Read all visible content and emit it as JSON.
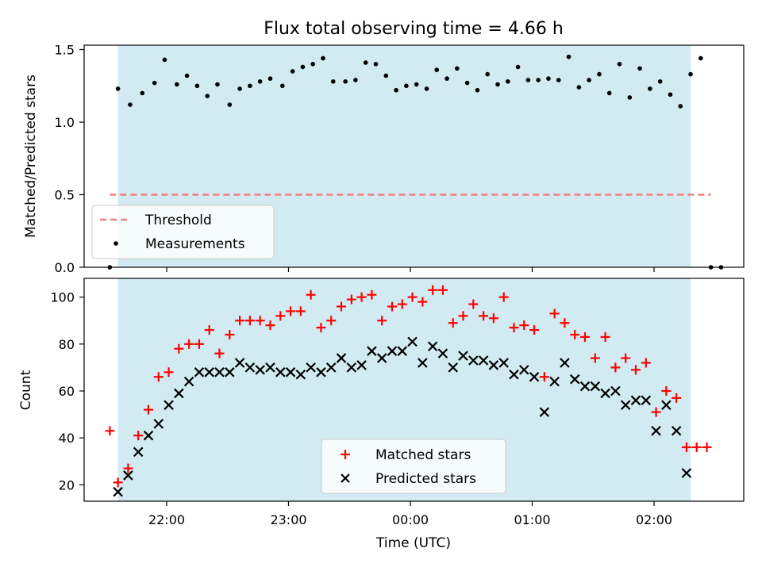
{
  "title": "Flux total observing time = 4.66 h",
  "observing_window": {
    "start": "21:36",
    "end": "02:18",
    "color": "#add8e6"
  },
  "chart_data": [
    {
      "type": "scatter",
      "ylabel": "Matched/Predicted stars",
      "ylim": [
        0,
        1.53
      ],
      "yticks": [
        0.0,
        0.5,
        1.0,
        1.5
      ],
      "ytick_labels": [
        "0.0",
        "0.5",
        "1.0",
        "1.5"
      ],
      "legend": {
        "placement": "lower-left",
        "entries": [
          "Threshold",
          "Measurements"
        ]
      },
      "threshold": {
        "name": "Threshold",
        "value": 0.5,
        "x_start": "21:32",
        "x_end": "02:28",
        "color": "#f08080",
        "style": "dashed"
      },
      "series": [
        {
          "name": "Measurements",
          "marker": "dot",
          "color": "#000000",
          "points": [
            [
              "21:32",
              0.0
            ],
            [
              "21:36",
              1.23
            ],
            [
              "21:42",
              1.12
            ],
            [
              "21:48",
              1.2
            ],
            [
              "21:54",
              1.27
            ],
            [
              "21:59",
              1.43
            ],
            [
              "22:05",
              1.26
            ],
            [
              "22:10",
              1.32
            ],
            [
              "22:15",
              1.25
            ],
            [
              "22:20",
              1.18
            ],
            [
              "22:25",
              1.26
            ],
            [
              "22:31",
              1.12
            ],
            [
              "22:36",
              1.23
            ],
            [
              "22:41",
              1.25
            ],
            [
              "22:46",
              1.28
            ],
            [
              "22:51",
              1.3
            ],
            [
              "22:57",
              1.25
            ],
            [
              "23:02",
              1.35
            ],
            [
              "23:07",
              1.38
            ],
            [
              "23:12",
              1.4
            ],
            [
              "23:17",
              1.44
            ],
            [
              "23:22",
              1.28
            ],
            [
              "23:28",
              1.28
            ],
            [
              "23:33",
              1.29
            ],
            [
              "23:38",
              1.41
            ],
            [
              "23:43",
              1.4
            ],
            [
              "23:48",
              1.32
            ],
            [
              "23:53",
              1.22
            ],
            [
              "23:58",
              1.25
            ],
            [
              "00:03",
              1.26
            ],
            [
              "00:08",
              1.23
            ],
            [
              "00:13",
              1.36
            ],
            [
              "00:18",
              1.3
            ],
            [
              "00:23",
              1.37
            ],
            [
              "00:28",
              1.27
            ],
            [
              "00:33",
              1.22
            ],
            [
              "00:38",
              1.33
            ],
            [
              "00:43",
              1.26
            ],
            [
              "00:48",
              1.28
            ],
            [
              "00:53",
              1.38
            ],
            [
              "00:58",
              1.29
            ],
            [
              "01:03",
              1.29
            ],
            [
              "01:08",
              1.3
            ],
            [
              "01:13",
              1.29
            ],
            [
              "01:18",
              1.45
            ],
            [
              "01:23",
              1.24
            ],
            [
              "01:28",
              1.29
            ],
            [
              "01:33",
              1.33
            ],
            [
              "01:38",
              1.2
            ],
            [
              "01:43",
              1.4
            ],
            [
              "01:48",
              1.17
            ],
            [
              "01:53",
              1.37
            ],
            [
              "01:58",
              1.23
            ],
            [
              "02:03",
              1.28
            ],
            [
              "02:08",
              1.19
            ],
            [
              "02:13",
              1.11
            ],
            [
              "02:18",
              1.33
            ],
            [
              "02:23",
              1.44
            ],
            [
              "02:28",
              0.0
            ],
            [
              "02:33",
              0.0
            ]
          ]
        }
      ]
    },
    {
      "type": "scatter",
      "xlabel": "Time (UTC)",
      "ylabel": "Count",
      "ylim": [
        13,
        108
      ],
      "yticks": [
        20,
        40,
        60,
        80,
        100
      ],
      "ytick_labels": [
        "20",
        "40",
        "60",
        "80",
        "100"
      ],
      "x_ticks": [
        "22:00",
        "23:00",
        "00:00",
        "01:00",
        "02:00"
      ],
      "legend": {
        "placement": "lower-center",
        "entries": [
          "Matched stars",
          "Predicted stars"
        ]
      },
      "series": [
        {
          "name": "Matched stars",
          "marker": "plus",
          "color": "#ff0000",
          "points": [
            [
              "21:32",
              43
            ],
            [
              "21:36",
              21
            ],
            [
              "21:41",
              27
            ],
            [
              "21:46",
              41
            ],
            [
              "21:51",
              52
            ],
            [
              "21:56",
              66
            ],
            [
              "22:01",
              68
            ],
            [
              "22:06",
              78
            ],
            [
              "22:11",
              80
            ],
            [
              "22:16",
              80
            ],
            [
              "22:21",
              86
            ],
            [
              "22:26",
              76
            ],
            [
              "22:31",
              84
            ],
            [
              "22:36",
              90
            ],
            [
              "22:41",
              90
            ],
            [
              "22:46",
              90
            ],
            [
              "22:51",
              88
            ],
            [
              "22:56",
              92
            ],
            [
              "23:01",
              94
            ],
            [
              "23:06",
              94
            ],
            [
              "23:11",
              101
            ],
            [
              "23:16",
              87
            ],
            [
              "23:21",
              90
            ],
            [
              "23:26",
              96
            ],
            [
              "23:31",
              99
            ],
            [
              "23:36",
              100
            ],
            [
              "23:41",
              101
            ],
            [
              "23:46",
              90
            ],
            [
              "23:51",
              96
            ],
            [
              "23:56",
              97
            ],
            [
              "00:01",
              100
            ],
            [
              "00:06",
              98
            ],
            [
              "00:11",
              103
            ],
            [
              "00:16",
              103
            ],
            [
              "00:21",
              89
            ],
            [
              "00:26",
              92
            ],
            [
              "00:31",
              97
            ],
            [
              "00:36",
              92
            ],
            [
              "00:41",
              91
            ],
            [
              "00:46",
              100
            ],
            [
              "00:51",
              87
            ],
            [
              "00:56",
              88
            ],
            [
              "01:01",
              86
            ],
            [
              "01:06",
              66
            ],
            [
              "01:11",
              93
            ],
            [
              "01:16",
              89
            ],
            [
              "01:21",
              84
            ],
            [
              "01:26",
              83
            ],
            [
              "01:31",
              74
            ],
            [
              "01:36",
              83
            ],
            [
              "01:41",
              70
            ],
            [
              "01:46",
              74
            ],
            [
              "01:51",
              69
            ],
            [
              "01:56",
              72
            ],
            [
              "02:01",
              51
            ],
            [
              "02:06",
              60
            ],
            [
              "02:11",
              57
            ],
            [
              "02:16",
              36
            ],
            [
              "02:21",
              36
            ],
            [
              "02:26",
              36
            ]
          ]
        },
        {
          "name": "Predicted stars",
          "marker": "x",
          "color": "#000000",
          "points": [
            [
              "21:36",
              17
            ],
            [
              "21:41",
              24
            ],
            [
              "21:46",
              34
            ],
            [
              "21:51",
              41
            ],
            [
              "21:56",
              46
            ],
            [
              "22:01",
              54
            ],
            [
              "22:06",
              59
            ],
            [
              "22:11",
              64
            ],
            [
              "22:16",
              68
            ],
            [
              "22:21",
              68
            ],
            [
              "22:26",
              68
            ],
            [
              "22:31",
              68
            ],
            [
              "22:36",
              72
            ],
            [
              "22:41",
              70
            ],
            [
              "22:46",
              69
            ],
            [
              "22:51",
              70
            ],
            [
              "22:56",
              68
            ],
            [
              "23:01",
              68
            ],
            [
              "23:06",
              67
            ],
            [
              "23:11",
              70
            ],
            [
              "23:16",
              68
            ],
            [
              "23:21",
              70
            ],
            [
              "23:26",
              74
            ],
            [
              "23:31",
              70
            ],
            [
              "23:36",
              71
            ],
            [
              "23:41",
              77
            ],
            [
              "23:46",
              74
            ],
            [
              "23:51",
              77
            ],
            [
              "23:56",
              77
            ],
            [
              "00:01",
              81
            ],
            [
              "00:06",
              72
            ],
            [
              "00:11",
              79
            ],
            [
              "00:16",
              76
            ],
            [
              "00:21",
              70
            ],
            [
              "00:26",
              75
            ],
            [
              "00:31",
              73
            ],
            [
              "00:36",
              73
            ],
            [
              "00:41",
              71
            ],
            [
              "00:46",
              72
            ],
            [
              "00:51",
              67
            ],
            [
              "00:56",
              69
            ],
            [
              "01:01",
              66
            ],
            [
              "01:06",
              51
            ],
            [
              "01:11",
              64
            ],
            [
              "01:16",
              72
            ],
            [
              "01:21",
              65
            ],
            [
              "01:26",
              62
            ],
            [
              "01:31",
              62
            ],
            [
              "01:36",
              59
            ],
            [
              "01:41",
              60
            ],
            [
              "01:46",
              54
            ],
            [
              "01:51",
              56
            ],
            [
              "01:56",
              56
            ],
            [
              "02:01",
              43
            ],
            [
              "02:06",
              54
            ],
            [
              "02:11",
              43
            ],
            [
              "02:16",
              25
            ]
          ]
        }
      ]
    }
  ]
}
